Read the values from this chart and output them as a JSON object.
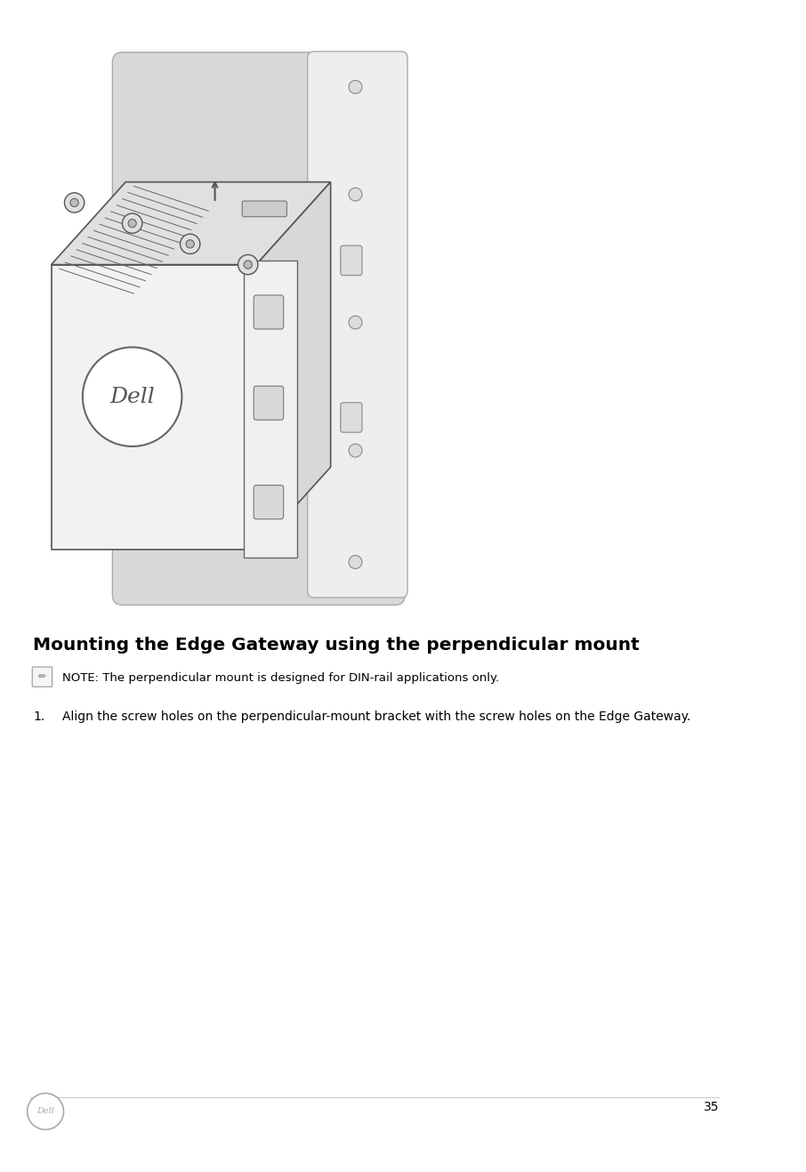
{
  "bg_color": "#ffffff",
  "title": "Mounting the Edge Gateway using the perpendicular mount",
  "title_fontsize": 14.5,
  "note_text": "NOTE: The perpendicular mount is designed for DIN-rail applications only.",
  "note_fontsize": 9.5,
  "step1_text": "Align the screw holes on the perpendicular-mount bracket with the screw holes on the Edge Gateway.",
  "step1_fontsize": 10,
  "page_number": "35",
  "page_num_fontsize": 10,
  "shadow_color": "#d8d8d8",
  "bracket_color": "#e8e8e8",
  "bracket_edge": "#aaaaaa",
  "device_face_color": "#f2f2f2",
  "device_top_color": "#e0e0e0",
  "device_right_color": "#d8d8d8",
  "device_edge": "#555555",
  "line_color": "#666666"
}
